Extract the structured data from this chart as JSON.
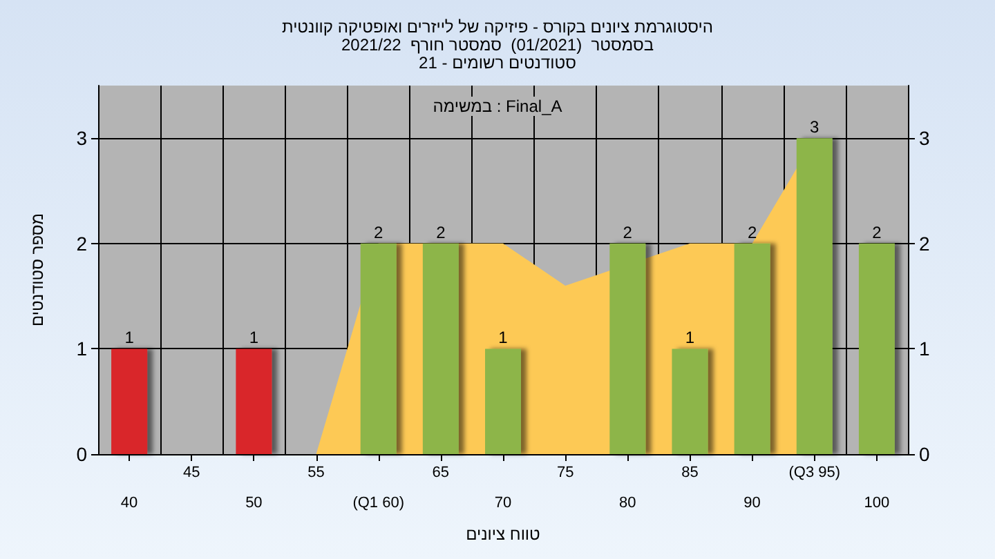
{
  "chart_data": {
    "type": "bar",
    "title": "היסטוגרמת ציונים בקורס - פיזיקה של לייזרים ואופטיקה קוונטית",
    "subtitle": "בסמסטר  (01/2021)  סמסטר חורף  2021/22\nסטודנטים רשומים - 21",
    "xlabel": "טווח ציונים",
    "ylabel": "מספר סטודנטים",
    "annotations": [
      "במשימה : Final_A"
    ],
    "categories": [
      "40",
      "45",
      "50",
      "55",
      "(Q1 60)",
      "65",
      "70",
      "75",
      "80",
      "85",
      "90",
      "(Q3 95)",
      "100"
    ],
    "series": [
      {
        "type": "area",
        "color": "#fdc955",
        "values": [
          null,
          null,
          null,
          0,
          2,
          2,
          2,
          1.6,
          null,
          2,
          2,
          3,
          null
        ]
      },
      {
        "values": [
          1,
          0,
          1,
          0,
          2,
          2,
          1,
          0,
          2,
          1,
          2,
          3,
          2
        ],
        "colors": [
          "#d9262b",
          "#d9262b",
          "#d9262b",
          "#8db54a",
          "#8db54a",
          "#8db54a",
          "#8db54a",
          "#8db54a",
          "#8db54a",
          "#8db54a",
          "#8db54a",
          "#8db54a",
          "#8db54a"
        ],
        "value_labels": [
          "1",
          null,
          "1",
          null,
          "2",
          "2",
          "1",
          null,
          "2",
          "1",
          "2",
          "3",
          "2"
        ]
      }
    ],
    "ylim": [
      0,
      3.5
    ],
    "yticks": [
      0,
      1,
      2,
      3
    ],
    "y2lim": [
      0,
      3.5
    ],
    "y2ticks": [
      0,
      1,
      2,
      3
    ],
    "grid": true
  }
}
